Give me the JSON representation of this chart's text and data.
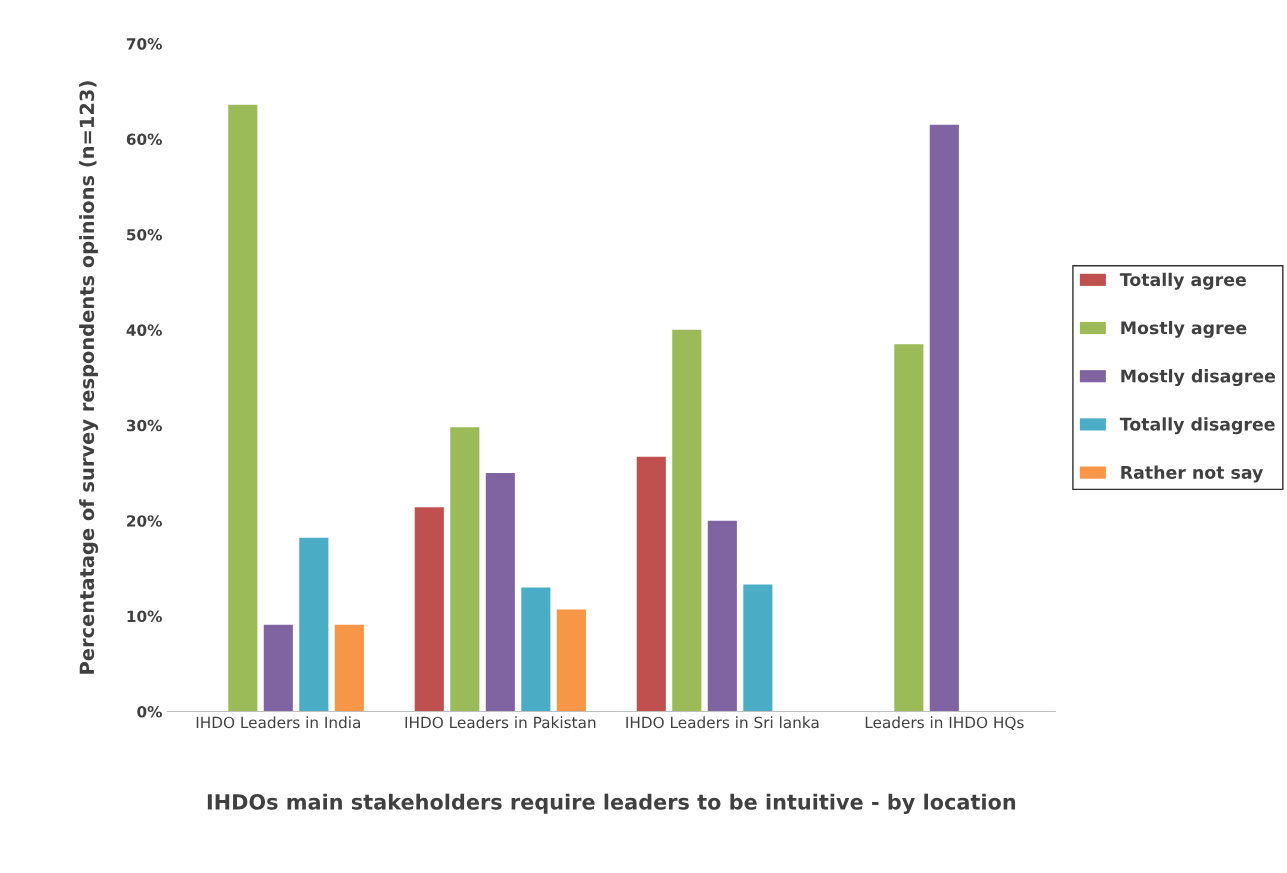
{
  "chart_data": {
    "type": "bar",
    "xlabel": "IHDOs main stakeholders require leaders to be intuitive - by location",
    "ylabel": "Percentatage of survey respondents opinions (n=123)",
    "categories": [
      "IHDO Leaders in India",
      "IHDO Leaders in Pakistan",
      "IHDO Leaders in Sri lanka",
      "Leaders in IHDO HQs"
    ],
    "series": [
      {
        "name": "Totally agree",
        "color": "#c0504d",
        "values": [
          null,
          21.4,
          26.7,
          null
        ]
      },
      {
        "name": "Mostly agree",
        "color": "#9bbb59",
        "values": [
          63.6,
          29.8,
          40.0,
          38.5
        ]
      },
      {
        "name": "Mostly disagree",
        "color": "#8064a2",
        "values": [
          9.1,
          25.0,
          20.0,
          61.5
        ]
      },
      {
        "name": "Totally disagree",
        "color": "#4bacc6",
        "values": [
          18.2,
          13.0,
          13.3,
          null
        ]
      },
      {
        "name": "Rather not say",
        "color": "#f79646",
        "values": [
          9.1,
          10.7,
          null,
          null
        ]
      }
    ],
    "ylim": [
      0,
      70
    ],
    "yticks": [
      {
        "value": 0,
        "label": "0%"
      },
      {
        "value": 10,
        "label": "10%"
      },
      {
        "value": 20,
        "label": "20%"
      },
      {
        "value": 30,
        "label": "30%"
      },
      {
        "value": 40,
        "label": "40%"
      },
      {
        "value": 50,
        "label": "50%"
      },
      {
        "value": 60,
        "label": "60%"
      },
      {
        "value": 70,
        "label": "70%"
      }
    ],
    "grid": false,
    "legend": "right"
  }
}
